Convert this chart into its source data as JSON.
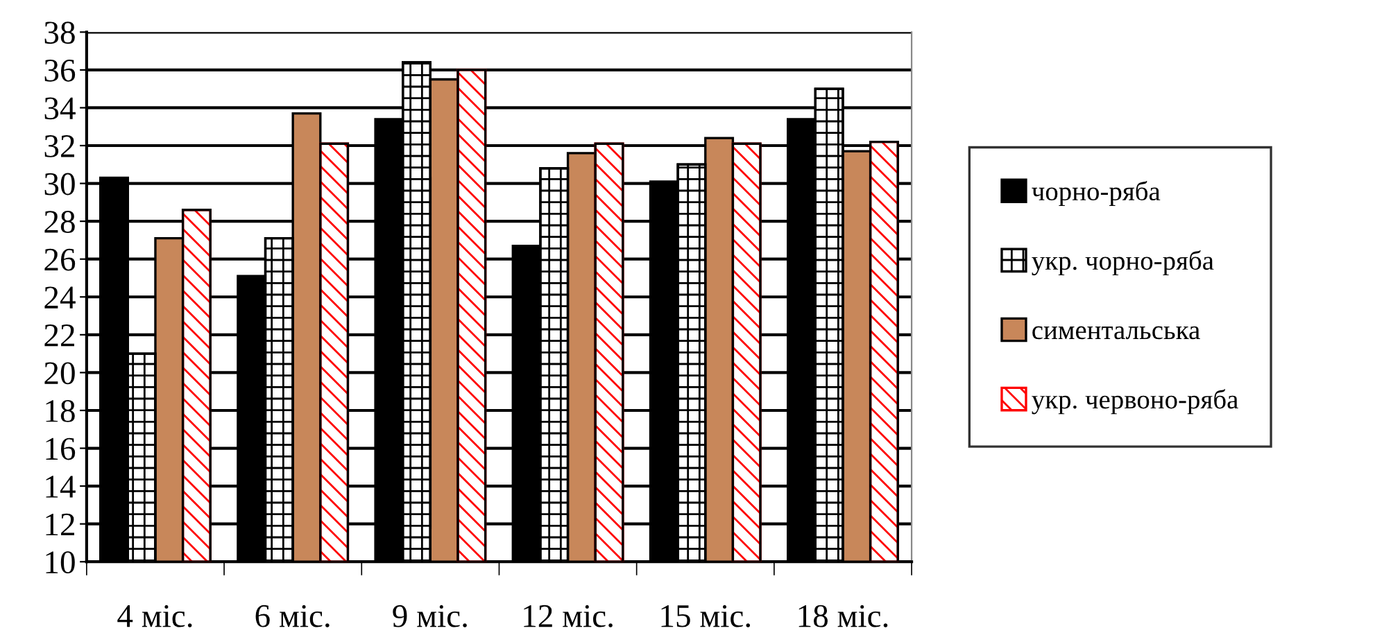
{
  "chart_data": {
    "type": "bar",
    "categories": [
      "4 міс.",
      "6 міс.",
      "9 міс.",
      "12 міс.",
      "15 міс.",
      "18 міс."
    ],
    "series": [
      {
        "name": "чорно-ряба",
        "color": "#000000",
        "values": [
          30.3,
          25.1,
          33.4,
          26.7,
          30.1,
          33.4
        ]
      },
      {
        "name": "укр. чорно-ряба",
        "color": "#000000",
        "values": [
          21.0,
          27.1,
          36.4,
          30.8,
          31.0,
          35.0
        ]
      },
      {
        "name": "симентальська",
        "color": "#c8875a",
        "values": [
          27.1,
          33.7,
          35.5,
          31.6,
          32.4,
          31.7
        ]
      },
      {
        "name": "укр. червоно-ряба",
        "color": "#ff0000",
        "values": [
          28.6,
          32.1,
          36.0,
          32.1,
          32.1,
          32.2
        ]
      }
    ],
    "ylim": [
      10,
      38
    ],
    "yticks": [
      10,
      12,
      14,
      16,
      18,
      20,
      22,
      24,
      26,
      28,
      30,
      32,
      34,
      36,
      38
    ],
    "grid": "y",
    "legend": "right"
  }
}
